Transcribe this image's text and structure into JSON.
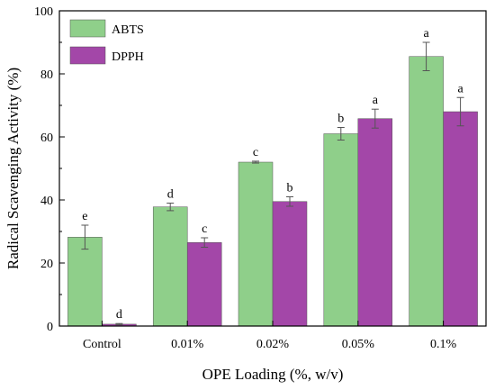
{
  "chart_data": {
    "type": "bar",
    "xlabel": "OPE Loading (%, w/v)",
    "ylabel": "Radical Scavenging Activity (%)",
    "ylim": [
      0,
      100
    ],
    "yticks": [
      0,
      20,
      40,
      60,
      80,
      100
    ],
    "categories": [
      "Control",
      "0.01%",
      "0.02%",
      "0.05%",
      "0.1%"
    ],
    "grid": false,
    "legend_position": "top-left",
    "series": [
      {
        "name": "ABTS",
        "color": "#8fcf8a",
        "values": [
          28.2,
          37.8,
          52.0,
          61.0,
          85.5
        ],
        "errors": [
          3.8,
          1.2,
          0.3,
          2.0,
          4.5
        ],
        "labels": [
          "e",
          "d",
          "c",
          "b",
          "a"
        ]
      },
      {
        "name": "DPPH",
        "color": "#a347a8",
        "values": [
          0.6,
          26.5,
          39.5,
          65.8,
          68.0
        ],
        "errors": [
          0.2,
          1.5,
          1.5,
          3.0,
          4.5
        ],
        "labels": [
          "d",
          "c",
          "b",
          "a",
          "a"
        ]
      }
    ]
  }
}
